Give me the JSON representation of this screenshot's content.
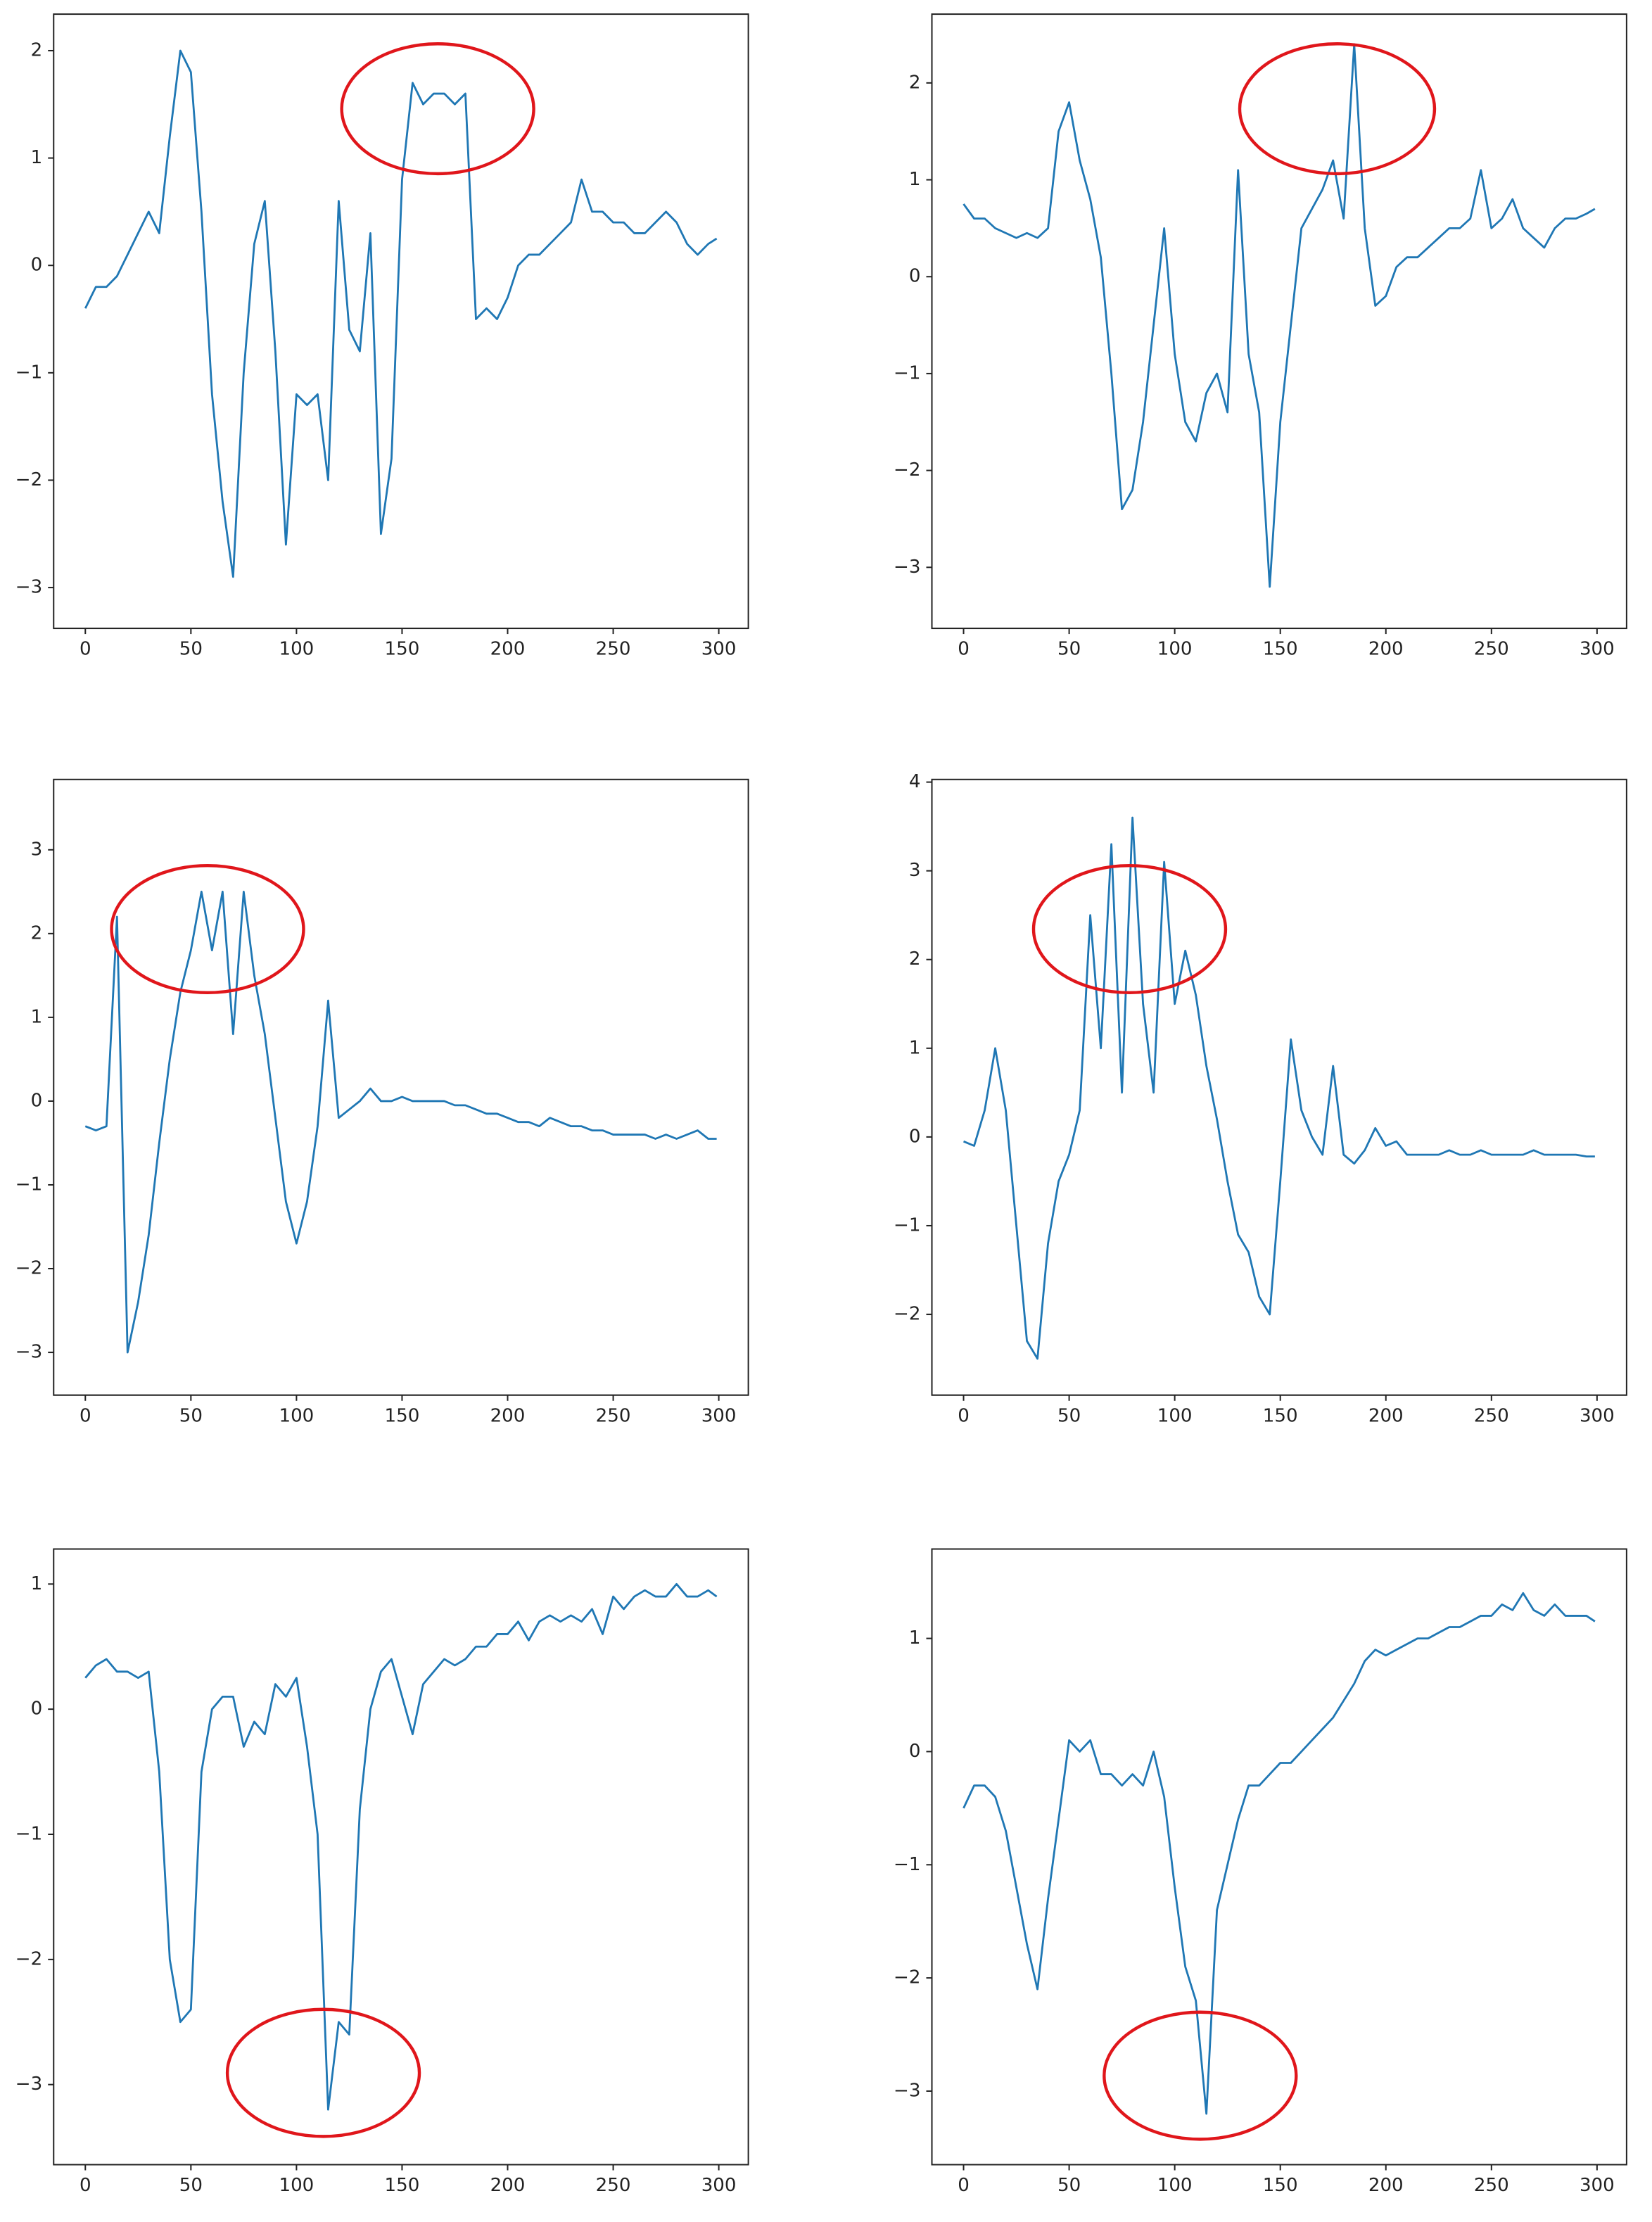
{
  "chart_data": [
    {
      "type": "line",
      "color": "#1f77b4",
      "x": [
        0,
        5,
        10,
        15,
        20,
        25,
        30,
        35,
        40,
        45,
        50,
        55,
        60,
        65,
        70,
        75,
        80,
        85,
        90,
        95,
        100,
        105,
        110,
        115,
        120,
        125,
        130,
        135,
        140,
        145,
        150,
        155,
        160,
        165,
        170,
        175,
        180,
        185,
        190,
        195,
        200,
        205,
        210,
        215,
        220,
        225,
        230,
        235,
        240,
        245,
        250,
        255,
        260,
        265,
        270,
        275,
        280,
        285,
        290,
        295,
        299
      ],
      "values": [
        -0.4,
        -0.2,
        -0.2,
        -0.1,
        0.1,
        0.3,
        0.5,
        0.3,
        1.2,
        2.0,
        1.8,
        0.5,
        -1.2,
        -2.2,
        -2.9,
        -1.0,
        0.2,
        0.6,
        -0.8,
        -2.6,
        -1.2,
        -1.3,
        -1.2,
        -2.0,
        0.6,
        -0.6,
        -0.8,
        0.3,
        -2.5,
        -1.8,
        0.8,
        1.7,
        1.5,
        1.6,
        1.6,
        1.5,
        1.6,
        -0.5,
        -0.4,
        -0.5,
        -0.3,
        0.0,
        0.1,
        0.1,
        0.2,
        0.3,
        0.4,
        0.8,
        0.5,
        0.5,
        0.4,
        0.4,
        0.3,
        0.3,
        0.4,
        0.5,
        0.4,
        0.2,
        0.1,
        0.2,
        0.25
      ],
      "xlim": [
        -15,
        314
      ],
      "ylim": [
        -3.38,
        2.34
      ],
      "xticks": [
        0,
        50,
        100,
        150,
        200,
        250,
        300
      ],
      "yticks": [
        {
          "value": -3,
          "label": "−3"
        },
        {
          "value": -2,
          "label": "−2"
        },
        {
          "value": -1,
          "label": "−1"
        },
        0,
        1,
        2
      ]
    },
    {
      "type": "line",
      "color": "#1f77b4",
      "x": [
        0,
        5,
        10,
        15,
        20,
        25,
        30,
        35,
        40,
        45,
        50,
        55,
        60,
        65,
        70,
        75,
        80,
        85,
        90,
        95,
        100,
        105,
        110,
        115,
        120,
        125,
        130,
        135,
        140,
        145,
        150,
        155,
        160,
        165,
        170,
        175,
        180,
        185,
        190,
        195,
        200,
        205,
        210,
        215,
        220,
        225,
        230,
        235,
        240,
        245,
        250,
        255,
        260,
        265,
        270,
        275,
        280,
        285,
        290,
        295,
        299
      ],
      "values": [
        0.75,
        0.6,
        0.6,
        0.5,
        0.45,
        0.4,
        0.45,
        0.4,
        0.5,
        1.5,
        1.8,
        1.2,
        0.8,
        0.2,
        -1.0,
        -2.4,
        -2.2,
        -1.5,
        -0.5,
        0.5,
        -0.8,
        -1.5,
        -1.7,
        -1.2,
        -1.0,
        -1.4,
        1.1,
        -0.8,
        -1.4,
        -3.2,
        -1.5,
        -0.5,
        0.5,
        0.7,
        0.9,
        1.2,
        0.6,
        2.4,
        0.5,
        -0.3,
        -0.2,
        0.1,
        0.2,
        0.2,
        0.3,
        0.4,
        0.5,
        0.5,
        0.6,
        1.1,
        0.5,
        0.6,
        0.8,
        0.5,
        0.4,
        0.3,
        0.5,
        0.6,
        0.6,
        0.65,
        0.7
      ],
      "xlim": [
        -15,
        314
      ],
      "ylim": [
        -3.63,
        2.71
      ],
      "xticks": [
        0,
        50,
        100,
        150,
        200,
        250,
        300
      ],
      "yticks": [
        {
          "value": -3,
          "label": "−3"
        },
        {
          "value": -2,
          "label": "−2"
        },
        {
          "value": -1,
          "label": "−1"
        },
        0,
        1,
        2
      ]
    },
    {
      "type": "line",
      "color": "#1f77b4",
      "x": [
        0,
        5,
        10,
        15,
        20,
        25,
        30,
        35,
        40,
        45,
        50,
        55,
        60,
        65,
        70,
        75,
        80,
        85,
        90,
        95,
        100,
        105,
        110,
        115,
        120,
        125,
        130,
        135,
        140,
        145,
        150,
        155,
        160,
        165,
        170,
        175,
        180,
        185,
        190,
        195,
        200,
        205,
        210,
        215,
        220,
        225,
        230,
        235,
        240,
        245,
        250,
        255,
        260,
        265,
        270,
        275,
        280,
        285,
        290,
        295,
        299
      ],
      "values": [
        -0.3,
        -0.35,
        -0.3,
        2.2,
        -3.0,
        -2.4,
        -1.6,
        -0.5,
        0.5,
        1.3,
        1.8,
        2.5,
        1.8,
        2.5,
        0.8,
        2.5,
        1.5,
        0.8,
        -0.2,
        -1.2,
        -1.7,
        -1.2,
        -0.3,
        1.2,
        -0.2,
        -0.1,
        0.0,
        0.15,
        0.0,
        0.0,
        0.05,
        0.0,
        0.0,
        0.0,
        0.0,
        -0.05,
        -0.05,
        -0.1,
        -0.15,
        -0.15,
        -0.2,
        -0.25,
        -0.25,
        -0.3,
        -0.2,
        -0.25,
        -0.3,
        -0.3,
        -0.35,
        -0.35,
        -0.4,
        -0.4,
        -0.4,
        -0.4,
        -0.45,
        -0.4,
        -0.45,
        -0.4,
        -0.35,
        -0.45,
        -0.45
      ],
      "xlim": [
        -15,
        314
      ],
      "ylim": [
        -3.51,
        3.84
      ],
      "xticks": [
        0,
        50,
        100,
        150,
        200,
        250,
        300
      ],
      "yticks": [
        {
          "value": -3,
          "label": "−3"
        },
        {
          "value": -2,
          "label": "−2"
        },
        {
          "value": -1,
          "label": "−1"
        },
        0,
        1,
        2,
        3
      ]
    },
    {
      "type": "line",
      "color": "#1f77b4",
      "x": [
        0,
        5,
        10,
        15,
        20,
        25,
        30,
        35,
        40,
        45,
        50,
        55,
        60,
        65,
        70,
        75,
        80,
        85,
        90,
        95,
        100,
        105,
        110,
        115,
        120,
        125,
        130,
        135,
        140,
        145,
        150,
        155,
        160,
        165,
        170,
        175,
        180,
        185,
        190,
        195,
        200,
        205,
        210,
        215,
        220,
        225,
        230,
        235,
        240,
        245,
        250,
        255,
        260,
        265,
        270,
        275,
        280,
        285,
        290,
        295,
        299
      ],
      "values": [
        -0.05,
        -0.1,
        0.3,
        1.0,
        0.3,
        -1.0,
        -2.3,
        -2.5,
        -1.2,
        -0.5,
        -0.2,
        0.3,
        2.5,
        1.0,
        3.3,
        0.5,
        3.6,
        1.5,
        0.5,
        3.1,
        1.5,
        2.1,
        1.6,
        0.8,
        0.2,
        -0.5,
        -1.1,
        -1.3,
        -1.8,
        -2.0,
        -0.5,
        1.1,
        0.3,
        0.0,
        -0.2,
        0.8,
        -0.2,
        -0.3,
        -0.15,
        0.1,
        -0.1,
        -0.05,
        -0.2,
        -0.2,
        -0.2,
        -0.2,
        -0.15,
        -0.2,
        -0.2,
        -0.15,
        -0.2,
        -0.2,
        -0.2,
        -0.2,
        -0.15,
        -0.2,
        -0.2,
        -0.2,
        -0.2,
        -0.22,
        -0.22
      ],
      "xlim": [
        -15,
        314
      ],
      "ylim": [
        -2.91,
        4.03
      ],
      "xticks": [
        0,
        50,
        100,
        150,
        200,
        250,
        300
      ],
      "yticks": [
        {
          "value": -2,
          "label": "−2"
        },
        {
          "value": -1,
          "label": "−1"
        },
        0,
        1,
        2,
        3,
        4
      ]
    },
    {
      "type": "line",
      "color": "#1f77b4",
      "x": [
        0,
        5,
        10,
        15,
        20,
        25,
        30,
        35,
        40,
        45,
        50,
        55,
        60,
        65,
        70,
        75,
        80,
        85,
        90,
        95,
        100,
        105,
        110,
        115,
        120,
        125,
        130,
        135,
        140,
        145,
        150,
        155,
        160,
        165,
        170,
        175,
        180,
        185,
        190,
        195,
        200,
        205,
        210,
        215,
        220,
        225,
        230,
        235,
        240,
        245,
        250,
        255,
        260,
        265,
        270,
        275,
        280,
        285,
        290,
        295,
        299
      ],
      "values": [
        0.25,
        0.35,
        0.4,
        0.3,
        0.3,
        0.25,
        0.3,
        -0.5,
        -2.0,
        -2.5,
        -2.4,
        -0.5,
        0.0,
        0.1,
        0.1,
        -0.3,
        -0.1,
        -0.2,
        0.2,
        0.1,
        0.25,
        -0.3,
        -1.0,
        -3.2,
        -2.5,
        -2.6,
        -0.8,
        0.0,
        0.3,
        0.4,
        0.1,
        -0.2,
        0.2,
        0.3,
        0.4,
        0.35,
        0.4,
        0.5,
        0.5,
        0.6,
        0.6,
        0.7,
        0.55,
        0.7,
        0.75,
        0.7,
        0.75,
        0.7,
        0.8,
        0.6,
        0.9,
        0.8,
        0.9,
        0.95,
        0.9,
        0.9,
        1.0,
        0.9,
        0.9,
        0.95,
        0.9
      ],
      "xlim": [
        -15,
        314
      ],
      "ylim": [
        -3.64,
        1.28
      ],
      "xticks": [
        0,
        50,
        100,
        150,
        200,
        250,
        300
      ],
      "yticks": [
        {
          "value": -3,
          "label": "−3"
        },
        {
          "value": -2,
          "label": "−2"
        },
        {
          "value": -1,
          "label": "−1"
        },
        0,
        1
      ]
    },
    {
      "type": "line",
      "color": "#1f77b4",
      "x": [
        0,
        5,
        10,
        15,
        20,
        25,
        30,
        35,
        40,
        45,
        50,
        55,
        60,
        65,
        70,
        75,
        80,
        85,
        90,
        95,
        100,
        105,
        110,
        115,
        120,
        125,
        130,
        135,
        140,
        145,
        150,
        155,
        160,
        165,
        170,
        175,
        180,
        185,
        190,
        195,
        200,
        205,
        210,
        215,
        220,
        225,
        230,
        235,
        240,
        245,
        250,
        255,
        260,
        265,
        270,
        275,
        280,
        285,
        290,
        295,
        299
      ],
      "values": [
        -0.5,
        -0.3,
        -0.3,
        -0.4,
        -0.7,
        -1.2,
        -1.7,
        -2.1,
        -1.3,
        -0.6,
        0.1,
        0.0,
        0.1,
        -0.2,
        -0.2,
        -0.3,
        -0.2,
        -0.3,
        0.0,
        -0.4,
        -1.2,
        -1.9,
        -2.2,
        -3.2,
        -1.4,
        -1.0,
        -0.6,
        -0.3,
        -0.3,
        -0.2,
        -0.1,
        -0.1,
        0.0,
        0.1,
        0.2,
        0.3,
        0.45,
        0.6,
        0.8,
        0.9,
        0.85,
        0.9,
        0.95,
        1.0,
        1.0,
        1.05,
        1.1,
        1.1,
        1.15,
        1.2,
        1.2,
        1.3,
        1.25,
        1.4,
        1.25,
        1.2,
        1.3,
        1.2,
        1.2,
        1.2,
        1.15
      ],
      "xlim": [
        -15,
        314
      ],
      "ylim": [
        -3.65,
        1.79
      ],
      "xticks": [
        0,
        50,
        100,
        150,
        200,
        250,
        300
      ],
      "yticks": [
        {
          "value": -3,
          "label": "−3"
        },
        {
          "value": -2,
          "label": "−2"
        },
        {
          "value": -1,
          "label": "−1"
        },
        0,
        1
      ]
    }
  ]
}
